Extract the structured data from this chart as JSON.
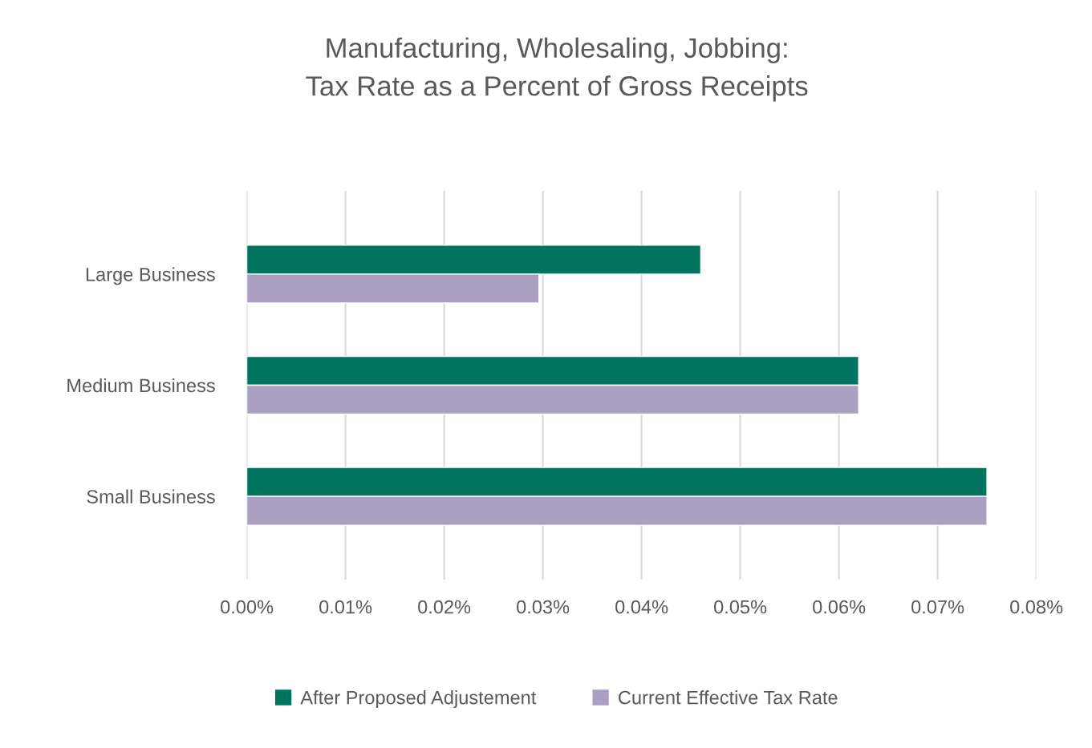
{
  "chart_data": {
    "type": "bar",
    "orientation": "horizontal",
    "title": "Manufacturing, Wholesaling, Jobbing:\nTax Rate as a Percent of Gross Receipts",
    "categories": [
      "Large Business",
      "Medium Business",
      "Small Business"
    ],
    "series": [
      {
        "name": "After Proposed Adjustement",
        "color": "#00745f",
        "values": [
          0.046,
          0.062,
          0.075
        ]
      },
      {
        "name": "Current Effective Tax Rate",
        "color": "#ab9fc2",
        "values": [
          0.0296,
          0.062,
          0.075
        ]
      }
    ],
    "xlim": [
      0,
      0.08
    ],
    "xticks": [
      {
        "value": 0,
        "label": "0.00%"
      },
      {
        "value": 0.01,
        "label": "0.01%"
      },
      {
        "value": 0.02,
        "label": "0.02%"
      },
      {
        "value": 0.03,
        "label": "0.03%"
      },
      {
        "value": 0.04,
        "label": "0.04%"
      },
      {
        "value": 0.05,
        "label": "0.05%"
      },
      {
        "value": 0.06,
        "label": "0.06%"
      },
      {
        "value": 0.07,
        "label": "0.07%"
      },
      {
        "value": 0.08,
        "label": "0.08%"
      }
    ],
    "grid": "x",
    "legend": "bottom"
  }
}
